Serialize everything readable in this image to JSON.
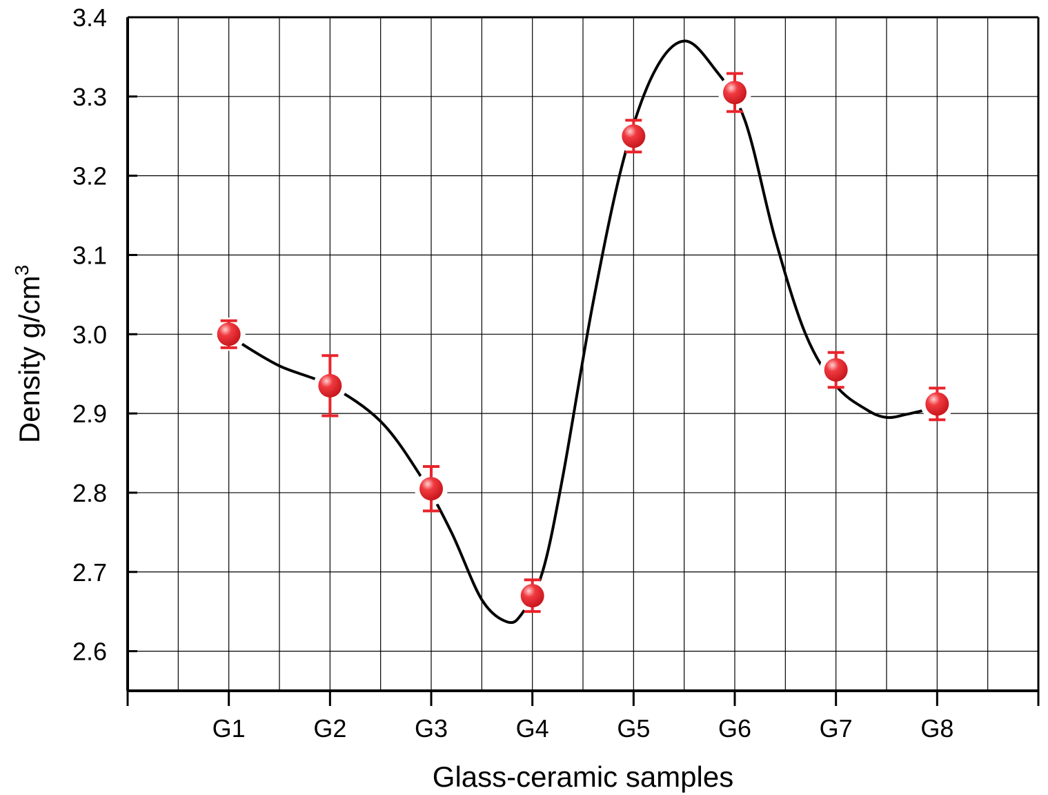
{
  "chart_data": {
    "type": "scatter",
    "title": "",
    "xlabel": "Glass-ceramic samples",
    "ylabel": "Density g/cm",
    "ylabel_superscript": "3",
    "categories": [
      "G1",
      "G2",
      "G3",
      "G4",
      "G5",
      "G6",
      "G7",
      "G8"
    ],
    "x_range": [
      0,
      9
    ],
    "ylim": [
      2.55,
      3.4
    ],
    "y_ticks": [
      "2.6",
      "2.7",
      "2.8",
      "2.9",
      "3.0",
      "3.1",
      "3.2",
      "3.3",
      "3.4"
    ],
    "grid": true,
    "legend": "none",
    "series": [
      {
        "values": [
          3.0,
          2.935,
          2.805,
          2.67,
          3.25,
          3.305,
          2.955,
          2.912
        ],
        "error": [
          0.017,
          0.038,
          0.028,
          0.02,
          0.02,
          0.024,
          0.022,
          0.02
        ],
        "color": "#e8242b"
      }
    ],
    "fit_curve": {
      "color": "#000000",
      "points": [
        [
          1.1,
          2.99
        ],
        [
          1.5,
          2.96
        ],
        [
          2.0,
          2.935
        ],
        [
          2.5,
          2.89
        ],
        [
          2.9,
          2.82
        ],
        [
          3.2,
          2.75
        ],
        [
          3.5,
          2.665
        ],
        [
          3.75,
          2.637
        ],
        [
          3.9,
          2.648
        ],
        [
          4.1,
          2.7
        ],
        [
          4.3,
          2.82
        ],
        [
          4.6,
          3.04
        ],
        [
          4.9,
          3.22
        ],
        [
          5.2,
          3.33
        ],
        [
          5.5,
          3.37
        ],
        [
          5.8,
          3.335
        ],
        [
          6.1,
          3.27
        ],
        [
          6.4,
          3.12
        ],
        [
          6.7,
          3.0
        ],
        [
          7.0,
          2.935
        ],
        [
          7.3,
          2.905
        ],
        [
          7.5,
          2.895
        ],
        [
          7.7,
          2.899
        ],
        [
          7.9,
          2.905
        ]
      ]
    }
  }
}
